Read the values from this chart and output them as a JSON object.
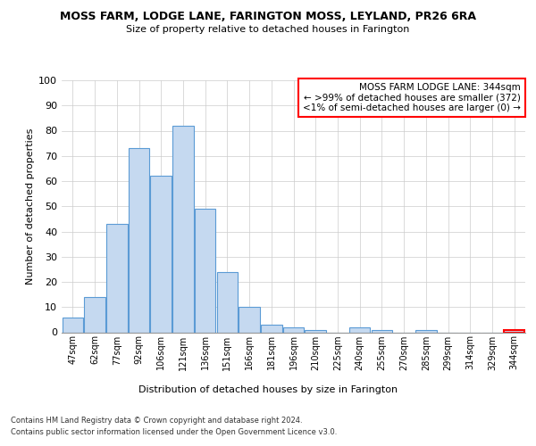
{
  "title": "MOSS FARM, LODGE LANE, FARINGTON MOSS, LEYLAND, PR26 6RA",
  "subtitle": "Size of property relative to detached houses in Farington",
  "xlabel": "Distribution of detached houses by size in Farington",
  "ylabel": "Number of detached properties",
  "bar_color": "#c5d9f0",
  "bar_edge_color": "#5b9bd5",
  "categories": [
    "47sqm",
    "62sqm",
    "77sqm",
    "92sqm",
    "106sqm",
    "121sqm",
    "136sqm",
    "151sqm",
    "166sqm",
    "181sqm",
    "196sqm",
    "210sqm",
    "225sqm",
    "240sqm",
    "255sqm",
    "270sqm",
    "285sqm",
    "299sqm",
    "314sqm",
    "329sqm",
    "344sqm"
  ],
  "values": [
    6,
    14,
    43,
    73,
    62,
    82,
    49,
    24,
    10,
    3,
    2,
    1,
    0,
    2,
    1,
    0,
    1,
    0,
    0,
    0,
    1
  ],
  "ylim": [
    0,
    100
  ],
  "yticks": [
    0,
    10,
    20,
    30,
    40,
    50,
    60,
    70,
    80,
    90,
    100
  ],
  "annotation_box_text": "MOSS FARM LODGE LANE: 344sqm\n← >99% of detached houses are smaller (372)\n<1% of semi-detached houses are larger (0) →",
  "annotation_box_color": "#ff0000",
  "highlight_bar_index": 20,
  "highlight_bar_color": "#ff0000",
  "footer_line1": "Contains HM Land Registry data © Crown copyright and database right 2024.",
  "footer_line2": "Contains public sector information licensed under the Open Government Licence v3.0.",
  "background_color": "#ffffff",
  "grid_color": "#cccccc"
}
